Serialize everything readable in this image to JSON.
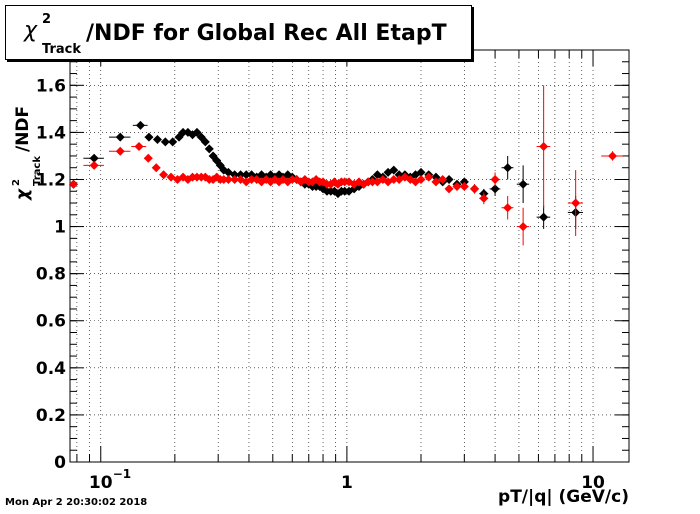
{
  "title": {
    "chi_symbol": "χ",
    "superscript": "2",
    "subscript": "Track",
    "text": "/NDF for Global Rec All EtapT"
  },
  "y_axis_label": {
    "chi_symbol": "χ",
    "superscript": "2",
    "subscript": "Track",
    "text": "/NDF"
  },
  "footer": "Mon Apr  2 20:30:02 2018",
  "colors": {
    "series_black": "#000000",
    "series_red": "#ff0000",
    "grid": "#000000"
  },
  "chart_data": {
    "type": "scatter",
    "xlabel": "pT/|q| (GeV/c)",
    "x_scale": "log",
    "xlim": [
      0.075,
      14
    ],
    "ylim": [
      0,
      1.75
    ],
    "grid": true,
    "x_tick_labels": [
      {
        "value": 0.1,
        "base": "10",
        "exp": "−1"
      },
      {
        "value": 1,
        "base": "1",
        "exp": ""
      },
      {
        "value": 10,
        "base": "10",
        "exp": ""
      }
    ],
    "y_ticks": [
      0,
      0.2,
      0.4,
      0.6,
      0.8,
      1,
      1.2,
      1.4,
      1.6
    ],
    "y_tick_labels": [
      "0",
      "0.2",
      "0.4",
      "0.6",
      "0.8",
      "1",
      "1.2",
      "1.4",
      "1.6"
    ],
    "series": [
      {
        "color": "#000000",
        "points": [
          [
            0.0775,
            1.18,
            0.0025,
            0.015
          ],
          [
            0.094,
            1.29,
            0.009,
            0.012
          ],
          [
            0.12,
            1.38,
            0.012,
            0.01
          ],
          [
            0.145,
            1.43,
            0.01,
            0.01
          ],
          [
            0.157,
            1.38,
            0.006,
            0.008
          ],
          [
            0.17,
            1.37,
            0.005,
            0.008
          ],
          [
            0.183,
            1.36,
            0.005,
            0.008
          ],
          [
            0.196,
            1.36,
            0.005,
            0.008
          ],
          [
            0.208,
            1.38,
            0.005,
            0.008
          ],
          [
            0.216,
            1.4,
            0.004,
            0.008
          ],
          [
            0.226,
            1.4,
            0.004,
            0.008
          ],
          [
            0.236,
            1.39,
            0.004,
            0.008
          ],
          [
            0.246,
            1.4,
            0.004,
            0.008
          ],
          [
            0.256,
            1.38,
            0.004,
            0.008
          ],
          [
            0.266,
            1.36,
            0.004,
            0.008
          ],
          [
            0.276,
            1.33,
            0.004,
            0.008
          ],
          [
            0.286,
            1.3,
            0.004,
            0.008
          ],
          [
            0.296,
            1.28,
            0.004,
            0.008
          ],
          [
            0.306,
            1.26,
            0.004,
            0.008
          ],
          [
            0.316,
            1.24,
            0.004,
            0.008
          ],
          [
            0.33,
            1.23,
            0.005,
            0.008
          ],
          [
            0.35,
            1.22,
            0.006,
            0.008
          ],
          [
            0.37,
            1.22,
            0.006,
            0.008
          ],
          [
            0.39,
            1.22,
            0.006,
            0.008
          ],
          [
            0.41,
            1.22,
            0.006,
            0.008
          ],
          [
            0.43,
            1.21,
            0.006,
            0.008
          ],
          [
            0.45,
            1.22,
            0.006,
            0.008
          ],
          [
            0.47,
            1.21,
            0.006,
            0.008
          ],
          [
            0.49,
            1.22,
            0.006,
            0.008
          ],
          [
            0.51,
            1.21,
            0.006,
            0.008
          ],
          [
            0.53,
            1.22,
            0.006,
            0.008
          ],
          [
            0.55,
            1.21,
            0.006,
            0.008
          ],
          [
            0.575,
            1.22,
            0.008,
            0.008
          ],
          [
            0.6,
            1.21,
            0.008,
            0.008
          ],
          [
            0.625,
            1.2,
            0.008,
            0.008
          ],
          [
            0.65,
            1.19,
            0.008,
            0.008
          ],
          [
            0.675,
            1.18,
            0.008,
            0.008
          ],
          [
            0.7,
            1.18,
            0.008,
            0.008
          ],
          [
            0.725,
            1.17,
            0.008,
            0.008
          ],
          [
            0.75,
            1.17,
            0.008,
            0.008
          ],
          [
            0.775,
            1.17,
            0.008,
            0.008
          ],
          [
            0.8,
            1.16,
            0.008,
            0.008
          ],
          [
            0.83,
            1.15,
            0.01,
            0.008
          ],
          [
            0.86,
            1.15,
            0.01,
            0.008
          ],
          [
            0.89,
            1.15,
            0.01,
            0.008
          ],
          [
            0.92,
            1.14,
            0.01,
            0.008
          ],
          [
            0.95,
            1.15,
            0.01,
            0.008
          ],
          [
            0.98,
            1.15,
            0.01,
            0.008
          ],
          [
            1.02,
            1.15,
            0.015,
            0.008
          ],
          [
            1.07,
            1.16,
            0.015,
            0.008
          ],
          [
            1.12,
            1.17,
            0.015,
            0.008
          ],
          [
            1.17,
            1.18,
            0.015,
            0.008
          ],
          [
            1.22,
            1.19,
            0.015,
            0.008
          ],
          [
            1.27,
            1.2,
            0.015,
            0.008
          ],
          [
            1.33,
            1.22,
            0.02,
            0.008
          ],
          [
            1.4,
            1.21,
            0.02,
            0.008
          ],
          [
            1.47,
            1.23,
            0.02,
            0.008
          ],
          [
            1.55,
            1.24,
            0.025,
            0.01
          ],
          [
            1.63,
            1.22,
            0.025,
            0.01
          ],
          [
            1.72,
            1.22,
            0.025,
            0.01
          ],
          [
            1.81,
            1.21,
            0.025,
            0.01
          ],
          [
            1.9,
            1.22,
            0.025,
            0.01
          ],
          [
            2.0,
            1.23,
            0.04,
            0.012
          ],
          [
            2.15,
            1.22,
            0.05,
            0.012
          ],
          [
            2.3,
            1.21,
            0.05,
            0.012
          ],
          [
            2.45,
            1.19,
            0.05,
            0.012
          ],
          [
            2.6,
            1.2,
            0.05,
            0.012
          ],
          [
            2.8,
            1.18,
            0.08,
            0.015
          ],
          [
            3.0,
            1.19,
            0.08,
            0.015
          ],
          [
            3.3,
            1.16,
            0.1,
            0.02
          ],
          [
            3.6,
            1.14,
            0.15,
            0.02
          ],
          [
            4.0,
            1.16,
            0.2,
            0.03
          ],
          [
            4.5,
            1.25,
            0.25,
            0.05
          ],
          [
            5.2,
            1.18,
            0.3,
            0.08
          ],
          [
            6.3,
            1.04,
            0.4,
            0.05
          ],
          [
            8.5,
            1.06,
            0.6,
            0.07
          ]
        ]
      },
      {
        "color": "#ff0000",
        "points": [
          [
            0.0775,
            1.18,
            0.0025,
            0.015
          ],
          [
            0.094,
            1.26,
            0.009,
            0.012
          ],
          [
            0.12,
            1.32,
            0.012,
            0.01
          ],
          [
            0.143,
            1.34,
            0.01,
            0.01
          ],
          [
            0.156,
            1.29,
            0.006,
            0.008
          ],
          [
            0.168,
            1.25,
            0.005,
            0.008
          ],
          [
            0.18,
            1.22,
            0.005,
            0.008
          ],
          [
            0.193,
            1.21,
            0.005,
            0.008
          ],
          [
            0.205,
            1.2,
            0.005,
            0.008
          ],
          [
            0.216,
            1.21,
            0.004,
            0.008
          ],
          [
            0.226,
            1.2,
            0.004,
            0.008
          ],
          [
            0.236,
            1.21,
            0.004,
            0.008
          ],
          [
            0.246,
            1.21,
            0.004,
            0.008
          ],
          [
            0.256,
            1.21,
            0.004,
            0.008
          ],
          [
            0.266,
            1.21,
            0.004,
            0.008
          ],
          [
            0.276,
            1.2,
            0.004,
            0.008
          ],
          [
            0.286,
            1.2,
            0.004,
            0.008
          ],
          [
            0.296,
            1.21,
            0.004,
            0.008
          ],
          [
            0.306,
            1.2,
            0.004,
            0.008
          ],
          [
            0.316,
            1.2,
            0.004,
            0.008
          ],
          [
            0.33,
            1.2,
            0.005,
            0.008
          ],
          [
            0.35,
            1.2,
            0.006,
            0.008
          ],
          [
            0.37,
            1.2,
            0.006,
            0.008
          ],
          [
            0.39,
            1.19,
            0.006,
            0.008
          ],
          [
            0.41,
            1.2,
            0.006,
            0.008
          ],
          [
            0.43,
            1.2,
            0.006,
            0.008
          ],
          [
            0.45,
            1.19,
            0.006,
            0.008
          ],
          [
            0.47,
            1.2,
            0.006,
            0.008
          ],
          [
            0.49,
            1.19,
            0.006,
            0.008
          ],
          [
            0.51,
            1.2,
            0.006,
            0.008
          ],
          [
            0.53,
            1.19,
            0.006,
            0.008
          ],
          [
            0.55,
            1.2,
            0.006,
            0.008
          ],
          [
            0.575,
            1.19,
            0.008,
            0.008
          ],
          [
            0.6,
            1.2,
            0.008,
            0.008
          ],
          [
            0.625,
            1.2,
            0.008,
            0.008
          ],
          [
            0.65,
            1.19,
            0.008,
            0.008
          ],
          [
            0.675,
            1.2,
            0.008,
            0.008
          ],
          [
            0.7,
            1.19,
            0.008,
            0.008
          ],
          [
            0.725,
            1.19,
            0.008,
            0.008
          ],
          [
            0.75,
            1.2,
            0.008,
            0.008
          ],
          [
            0.775,
            1.19,
            0.008,
            0.008
          ],
          [
            0.8,
            1.19,
            0.008,
            0.008
          ],
          [
            0.83,
            1.18,
            0.01,
            0.008
          ],
          [
            0.86,
            1.18,
            0.01,
            0.008
          ],
          [
            0.89,
            1.19,
            0.01,
            0.008
          ],
          [
            0.92,
            1.18,
            0.01,
            0.008
          ],
          [
            0.95,
            1.19,
            0.01,
            0.008
          ],
          [
            0.98,
            1.19,
            0.01,
            0.008
          ],
          [
            1.02,
            1.19,
            0.015,
            0.008
          ],
          [
            1.07,
            1.18,
            0.015,
            0.008
          ],
          [
            1.12,
            1.19,
            0.015,
            0.008
          ],
          [
            1.17,
            1.18,
            0.015,
            0.008
          ],
          [
            1.22,
            1.19,
            0.015,
            0.008
          ],
          [
            1.27,
            1.19,
            0.015,
            0.008
          ],
          [
            1.33,
            1.19,
            0.02,
            0.008
          ],
          [
            1.4,
            1.2,
            0.02,
            0.008
          ],
          [
            1.47,
            1.19,
            0.02,
            0.008
          ],
          [
            1.55,
            1.2,
            0.025,
            0.01
          ],
          [
            1.63,
            1.2,
            0.025,
            0.01
          ],
          [
            1.72,
            1.21,
            0.025,
            0.01
          ],
          [
            1.81,
            1.2,
            0.025,
            0.01
          ],
          [
            1.9,
            1.19,
            0.025,
            0.01
          ],
          [
            2.0,
            1.2,
            0.04,
            0.012
          ],
          [
            2.15,
            1.21,
            0.05,
            0.012
          ],
          [
            2.3,
            1.19,
            0.05,
            0.012
          ],
          [
            2.45,
            1.2,
            0.05,
            0.012
          ],
          [
            2.6,
            1.16,
            0.05,
            0.015
          ],
          [
            2.8,
            1.17,
            0.08,
            0.015
          ],
          [
            3.0,
            1.17,
            0.08,
            0.015
          ],
          [
            3.3,
            1.16,
            0.1,
            0.02
          ],
          [
            3.6,
            1.12,
            0.15,
            0.025
          ],
          [
            4.0,
            1.2,
            0.2,
            0.03
          ],
          [
            4.5,
            1.08,
            0.25,
            0.05
          ],
          [
            5.2,
            1.0,
            0.3,
            0.08
          ],
          [
            6.3,
            1.34,
            0.4,
            0.26
          ],
          [
            8.5,
            1.1,
            0.6,
            0.14
          ],
          [
            12.0,
            1.3,
            1.2,
            0.02
          ]
        ]
      }
    ]
  }
}
